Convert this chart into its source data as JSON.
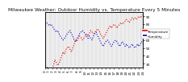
{
  "title": "Milwaukee Weather: Outdoor Humidity vs. Temperature Every 5 Minutes",
  "line1_color": "#dd0000",
  "line2_color": "#0000cc",
  "line1_label": "Temperature",
  "line2_label": "Humidity",
  "background_color": "#ffffff",
  "plot_bg_color": "#e8e8e8",
  "grid_color": "#ffffff",
  "border_color": "#000000",
  "ylim": [
    25,
    95
  ],
  "yticks": [
    30,
    40,
    50,
    60,
    70,
    80,
    90
  ],
  "title_fontsize": 4.2,
  "tick_fontsize": 3.0,
  "legend_fontsize": 3.0,
  "linewidth": 0.8,
  "markersize": 0.8,
  "temp_data": [
    28,
    26,
    24,
    22,
    20,
    22,
    28,
    35,
    32,
    28,
    30,
    35,
    40,
    45,
    42,
    48,
    50,
    52,
    48,
    45,
    50,
    55,
    60,
    58,
    62,
    65,
    63,
    60,
    62,
    65,
    68,
    65,
    68,
    72,
    70,
    68,
    70,
    72,
    74,
    72,
    68,
    65,
    62,
    65,
    68,
    72,
    75,
    78,
    75,
    78,
    80,
    78,
    75,
    78,
    80,
    82,
    80,
    82,
    84,
    86,
    84,
    82,
    85,
    88,
    86,
    88,
    86,
    88,
    90,
    88,
    90,
    92
  ],
  "hum_data": [
    80,
    82,
    80,
    78,
    80,
    78,
    75,
    72,
    70,
    72,
    68,
    65,
    62,
    60,
    62,
    65,
    68,
    70,
    72,
    68,
    65,
    60,
    58,
    62,
    65,
    68,
    70,
    72,
    70,
    68,
    65,
    62,
    65,
    62,
    60,
    65,
    68,
    70,
    65,
    62,
    58,
    55,
    52,
    55,
    58,
    60,
    58,
    55,
    52,
    55,
    58,
    60,
    58,
    55,
    52,
    55,
    58,
    55,
    52,
    55,
    52,
    50,
    52,
    55,
    52,
    50,
    52,
    55,
    52,
    55,
    58,
    55
  ]
}
